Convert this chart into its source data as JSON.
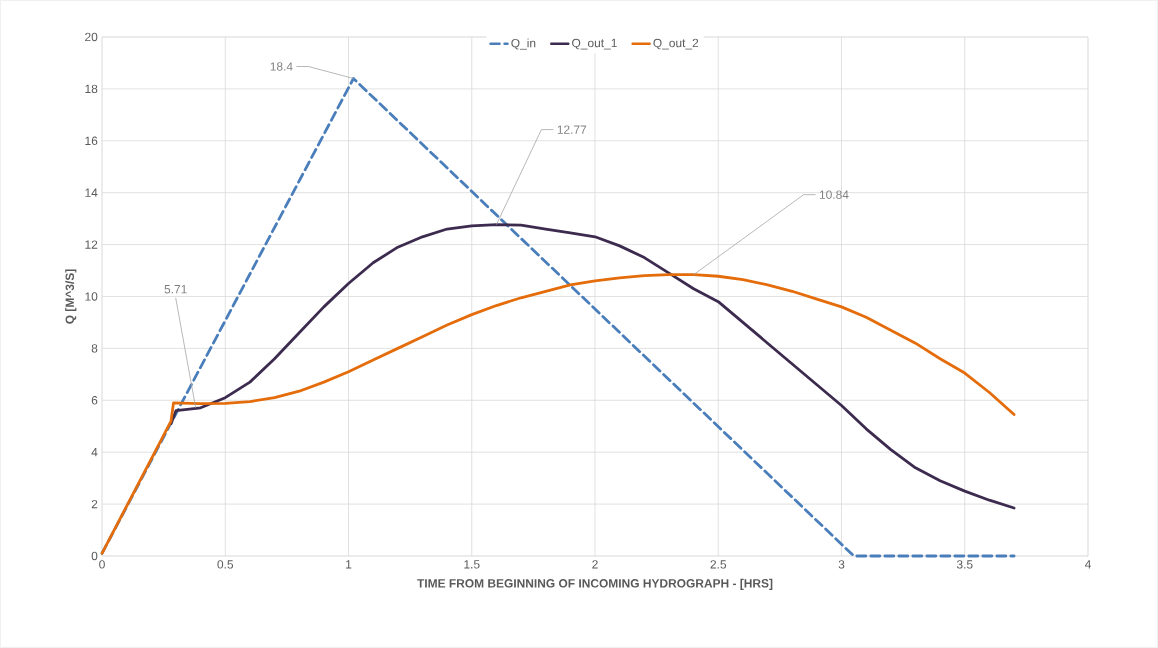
{
  "chart_data": {
    "type": "line",
    "xlabel": "TIME FROM BEGINNING OF INCOMING HYDROGRAPH - [HRS]",
    "ylabel": "Q [M^3/S]",
    "xlim": [
      0,
      4
    ],
    "xticks": [
      0,
      0.5,
      1,
      1.5,
      2,
      2.5,
      3,
      3.5,
      4
    ],
    "ylim": [
      0,
      20
    ],
    "yticks": [
      0,
      2,
      4,
      6,
      8,
      10,
      12,
      14,
      16,
      18,
      20
    ],
    "grid": true,
    "legend": "top",
    "marker": "none",
    "series": [
      {
        "name": "Q_in",
        "color": "#4a7ebb",
        "line_style": "dashed",
        "x": [
          0,
          1.02,
          3.05,
          3.7
        ],
        "values": [
          0.1,
          18.4,
          0,
          0
        ]
      },
      {
        "name": "Q_out_1",
        "color": "#3c2b4f",
        "line_style": "solid",
        "x": [
          0.28,
          0.3,
          0.4,
          0.5,
          0.6,
          0.7,
          0.8,
          0.9,
          1.0,
          1.1,
          1.2,
          1.3,
          1.4,
          1.5,
          1.6,
          1.7,
          1.8,
          1.9,
          2.0,
          2.1,
          2.2,
          2.3,
          2.4,
          2.5,
          2.6,
          2.7,
          2.8,
          2.9,
          3.0,
          3.1,
          3.2,
          3.3,
          3.4,
          3.5,
          3.6,
          3.7
        ],
        "values": [
          5.1,
          5.6,
          5.71,
          6.1,
          6.7,
          7.6,
          8.6,
          9.6,
          10.5,
          11.3,
          11.9,
          12.3,
          12.6,
          12.72,
          12.77,
          12.75,
          12.6,
          12.45,
          12.3,
          11.95,
          11.5,
          10.9,
          10.3,
          9.8,
          9.0,
          8.2,
          7.4,
          6.6,
          5.8,
          4.9,
          4.1,
          3.4,
          2.9,
          2.5,
          2.15,
          1.85
        ]
      },
      {
        "name": "Q_out_2",
        "color": "#e46c0a",
        "line_style": "solid",
        "x": [
          0,
          0.28,
          0.29,
          0.4,
          0.5,
          0.6,
          0.7,
          0.8,
          0.9,
          1.0,
          1.1,
          1.2,
          1.3,
          1.4,
          1.5,
          1.6,
          1.7,
          1.8,
          1.9,
          2.0,
          2.1,
          2.2,
          2.3,
          2.4,
          2.5,
          2.6,
          2.7,
          2.8,
          2.9,
          3.0,
          3.1,
          3.2,
          3.3,
          3.4,
          3.5,
          3.6,
          3.7
        ],
        "values": [
          0.1,
          5.2,
          5.9,
          5.87,
          5.88,
          5.95,
          6.1,
          6.35,
          6.7,
          7.1,
          7.55,
          8.0,
          8.45,
          8.9,
          9.3,
          9.65,
          9.95,
          10.2,
          10.45,
          10.6,
          10.72,
          10.8,
          10.84,
          10.84,
          10.78,
          10.65,
          10.45,
          10.2,
          9.9,
          9.6,
          9.2,
          8.7,
          8.2,
          7.6,
          7.05,
          6.3,
          5.45
        ]
      }
    ],
    "annotations": [
      {
        "text": "18.4",
        "x": 1.02,
        "y": 18.4
      },
      {
        "text": "12.77",
        "x": 1.6,
        "y": 12.77
      },
      {
        "text": "10.84",
        "x": 2.4,
        "y": 10.84
      },
      {
        "text": "5.71",
        "x": 0.38,
        "y": 5.71
      }
    ]
  }
}
